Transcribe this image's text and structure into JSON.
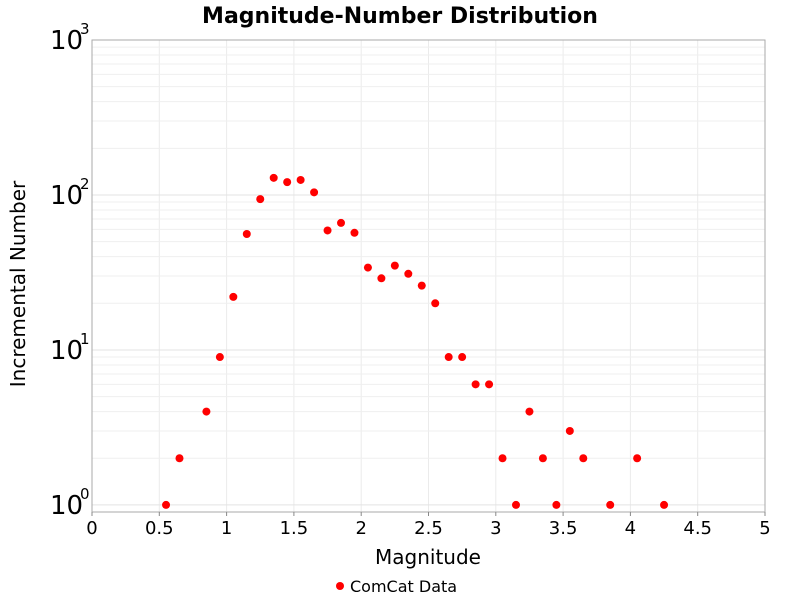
{
  "chart_data": {
    "type": "scatter",
    "title": "Magnitude-Number Distribution",
    "xlabel": "Magnitude",
    "ylabel": "Incremental Number",
    "xlim": [
      0,
      5
    ],
    "ylim": [
      0.9,
      1000
    ],
    "yscale": "log",
    "grid": true,
    "legend_position": "bottom",
    "x_ticks": [
      "0",
      "0.5",
      "1",
      "1.5",
      "2",
      "2.5",
      "3",
      "3.5",
      "4",
      "4.5",
      "5"
    ],
    "y_ticks": [
      {
        "base": "10",
        "exp": "0"
      },
      {
        "base": "10",
        "exp": "1"
      },
      {
        "base": "10",
        "exp": "2"
      },
      {
        "base": "10",
        "exp": "3"
      }
    ],
    "series": [
      {
        "name": "ComCat Data",
        "color": "#ff0000",
        "x": [
          0.55,
          0.65,
          0.85,
          0.95,
          1.05,
          1.15,
          1.25,
          1.35,
          1.45,
          1.55,
          1.65,
          1.75,
          1.85,
          1.95,
          2.05,
          2.15,
          2.25,
          2.35,
          2.45,
          2.55,
          2.65,
          2.75,
          2.85,
          2.95,
          3.05,
          3.15,
          3.25,
          3.35,
          3.45,
          3.55,
          3.65,
          3.85,
          4.05,
          4.25
        ],
        "y": [
          1,
          2,
          4,
          9,
          22,
          56,
          94,
          129,
          121,
          125,
          104,
          59,
          66,
          57,
          34,
          29,
          35,
          31,
          26,
          20,
          9,
          9,
          6,
          6,
          2,
          1,
          4,
          2,
          1,
          3,
          2,
          1,
          2,
          1
        ]
      }
    ]
  }
}
